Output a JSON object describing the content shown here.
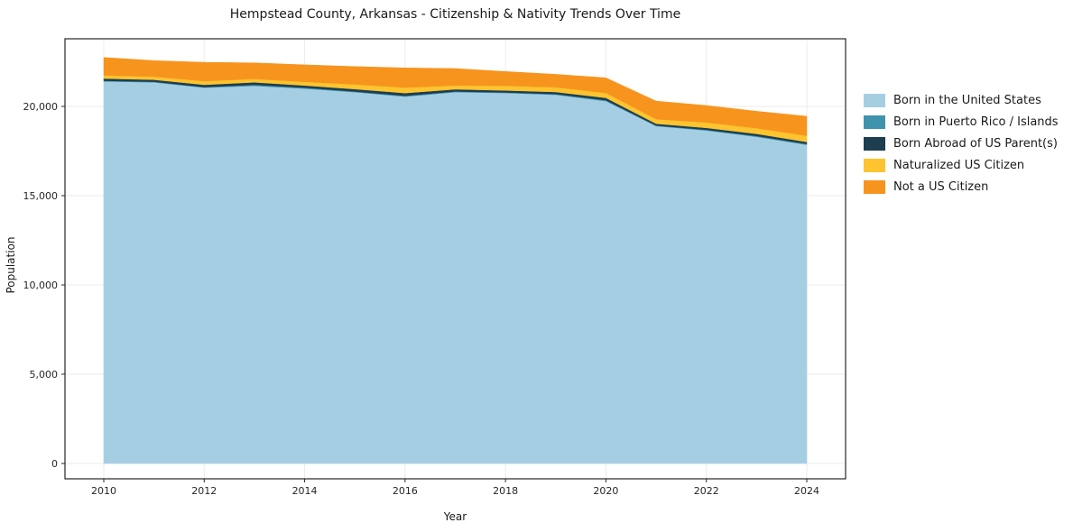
{
  "chart_data": {
    "type": "area",
    "stacked": true,
    "title": "Hempstead County, Arkansas - Citizenship & Nativity Trends Over Time",
    "xlabel": "Year",
    "ylabel": "Population",
    "x": [
      2010,
      2011,
      2012,
      2013,
      2014,
      2015,
      2016,
      2017,
      2018,
      2019,
      2020,
      2021,
      2022,
      2023,
      2024
    ],
    "series": [
      {
        "name": "Born in the United States",
        "color": "#a6cee3",
        "values": [
          21400,
          21350,
          21050,
          21150,
          21000,
          20800,
          20550,
          20800,
          20750,
          20650,
          20300,
          18900,
          18650,
          18300,
          17850
        ]
      },
      {
        "name": "Born in Puerto Rico / Islands",
        "color": "#4093ad",
        "values": [
          40,
          35,
          30,
          60,
          50,
          40,
          45,
          40,
          35,
          40,
          50,
          30,
          40,
          45,
          50
        ]
      },
      {
        "name": "Born Abroad of US Parent(s)",
        "color": "#1d3d51",
        "values": [
          120,
          110,
          130,
          140,
          120,
          130,
          150,
          120,
          110,
          120,
          130,
          100,
          110,
          120,
          110
        ]
      },
      {
        "name": "Naturalized US Citizen",
        "color": "#fdc42f",
        "values": [
          180,
          170,
          210,
          190,
          210,
          260,
          310,
          210,
          260,
          260,
          280,
          260,
          300,
          320,
          350
        ]
      },
      {
        "name": "Not a US Citizen",
        "color": "#f7941e",
        "values": [
          1000,
          900,
          1050,
          900,
          950,
          1000,
          1100,
          950,
          800,
          730,
          840,
          1010,
          950,
          940,
          1090
        ]
      }
    ],
    "xticks": [
      2010,
      2012,
      2014,
      2016,
      2018,
      2020,
      2022,
      2024
    ],
    "yticks": [
      0,
      5000,
      10000,
      15000,
      20000
    ],
    "ylim": [
      0,
      23800
    ],
    "grid": true,
    "legend_position": "right"
  }
}
